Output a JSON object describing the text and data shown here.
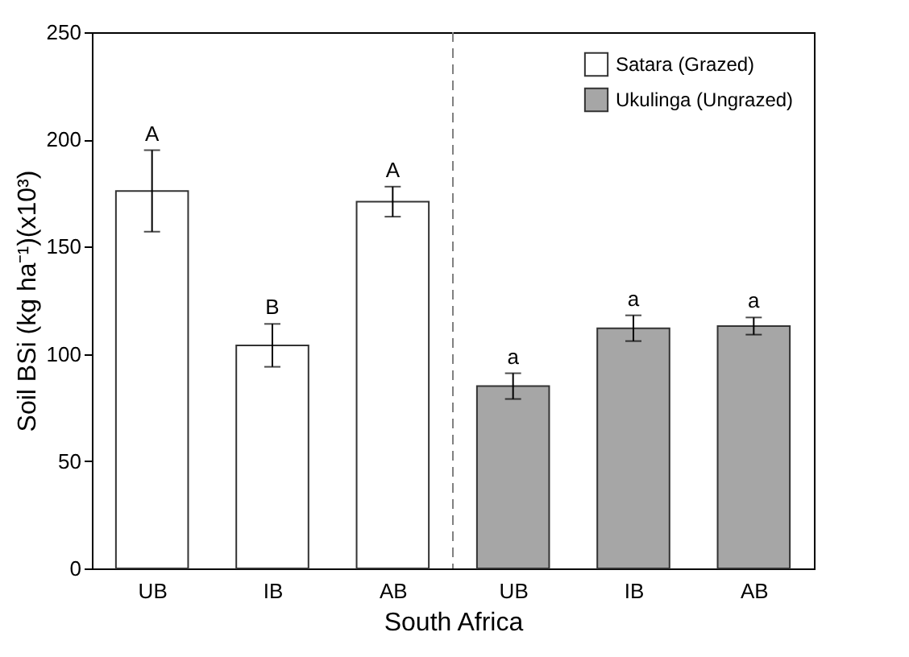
{
  "chart_data": {
    "type": "bar",
    "xlabel": "South Africa",
    "ylabel": "Soil BSi (kg ha⁻¹)(x10³)",
    "categories": [
      "UB",
      "IB",
      "AB",
      "UB",
      "IB",
      "AB"
    ],
    "series": [
      {
        "name": "Satara (Grazed)",
        "color": "#ffffff",
        "values": [
          176,
          104,
          171,
          null,
          null,
          null
        ],
        "errors": [
          19,
          10,
          7,
          null,
          null,
          null
        ]
      },
      {
        "name": "Ukulinga (Ungrazed)",
        "color": "#a6a6a6",
        "values": [
          null,
          null,
          null,
          85,
          112,
          113
        ],
        "errors": [
          null,
          null,
          null,
          6,
          6,
          4
        ]
      }
    ],
    "annotations": [
      "A",
      "B",
      "A",
      "a",
      "a",
      "a"
    ],
    "ylim": [
      0,
      250
    ],
    "yticks": [
      0,
      50,
      100,
      150,
      200,
      250
    ],
    "grid": false,
    "legend": "top right"
  }
}
